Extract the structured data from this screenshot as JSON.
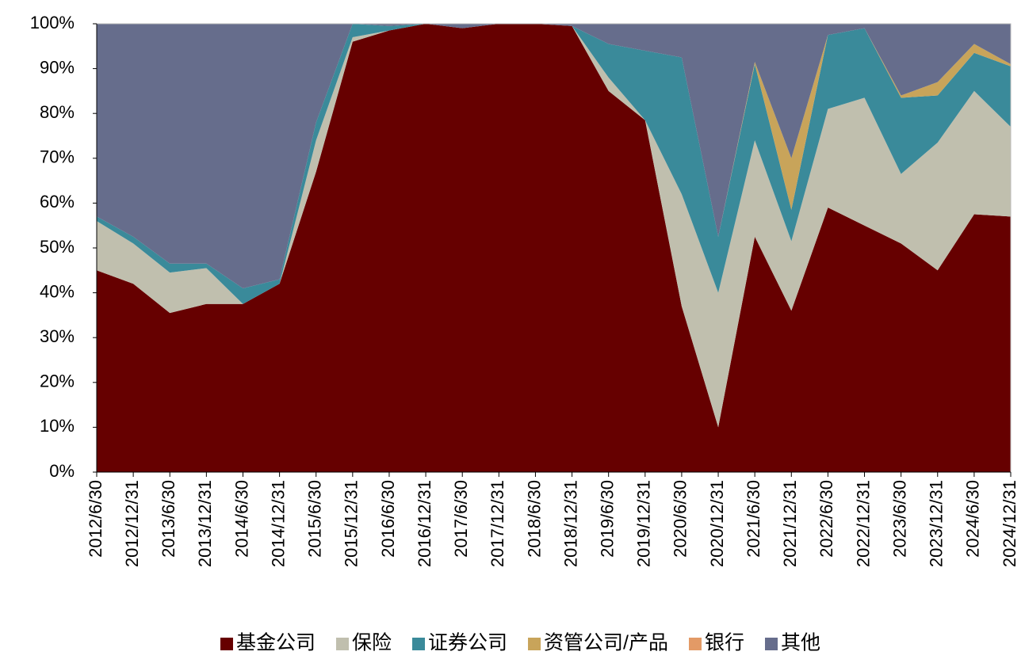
{
  "chart_data": {
    "type": "stacked_area",
    "categories": [
      "2012/6/30",
      "2012/12/31",
      "2013/6/30",
      "2013/12/31",
      "2014/6/30",
      "2014/12/31",
      "2015/6/30",
      "2015/12/31",
      "2016/6/30",
      "2016/12/31",
      "2017/6/30",
      "2017/12/31",
      "2018/6/30",
      "2018/12/31",
      "2019/6/30",
      "2019/12/31",
      "2020/6/30",
      "2020/12/31",
      "2021/6/30",
      "2021/12/31",
      "2022/6/30",
      "2022/12/31",
      "2023/6/30",
      "2023/12/31",
      "2024/6/30",
      "2024/12/31"
    ],
    "series": [
      {
        "name": "基金公司",
        "color": "#660000",
        "values": [
          45,
          42,
          35.5,
          37.5,
          37.5,
          42,
          67,
          96,
          98.5,
          100,
          99,
          100,
          100,
          99.5,
          85,
          78.5,
          37,
          10,
          52.5,
          36,
          59,
          55,
          51,
          45,
          57.5,
          57
        ]
      },
      {
        "name": "保险",
        "color": "#c0bfae",
        "values": [
          11,
          9,
          9,
          8,
          0,
          0,
          7,
          1,
          0,
          0,
          0,
          0,
          0,
          0,
          3,
          0,
          25,
          30,
          21.5,
          15.5,
          22,
          28.5,
          15.5,
          28.5,
          27.5,
          20
        ]
      },
      {
        "name": "证券公司",
        "color": "#3a8a9a",
        "values": [
          1,
          1.5,
          2,
          1,
          3.5,
          1,
          4,
          3,
          1,
          0,
          0,
          0,
          0,
          0,
          7.5,
          15.5,
          30.5,
          12.5,
          17,
          7,
          16.5,
          15.5,
          17,
          10.5,
          8.5,
          13.5
        ]
      },
      {
        "name": "资管公司/产品",
        "color": "#c8a45a",
        "values": [
          0,
          0,
          0,
          0,
          0,
          0,
          0,
          0,
          0,
          0,
          0,
          0,
          0,
          0,
          0,
          0,
          0,
          0,
          0.5,
          11.5,
          0,
          0,
          0.5,
          3,
          2,
          0.5
        ]
      },
      {
        "name": "银行",
        "color": "#e39a66",
        "values": [
          0,
          0,
          0,
          0,
          0,
          0,
          0,
          0,
          0,
          0,
          0,
          0,
          0,
          0,
          0,
          0,
          0,
          0,
          0,
          0,
          0,
          0,
          0,
          0,
          0,
          0
        ]
      },
      {
        "name": "其他",
        "color": "#666d8c",
        "values": [
          43,
          47.5,
          53.5,
          53.5,
          59,
          57,
          22,
          0,
          0.5,
          0,
          1,
          0,
          0,
          0.5,
          4.5,
          6,
          7.5,
          47.5,
          8.5,
          30,
          2.5,
          1,
          16,
          13,
          4.5,
          9
        ]
      }
    ],
    "ylim": [
      0,
      100
    ],
    "yticks": [
      {
        "value": 0,
        "label": "0%"
      },
      {
        "value": 10,
        "label": "10%"
      },
      {
        "value": 20,
        "label": "20%"
      },
      {
        "value": 30,
        "label": "30%"
      },
      {
        "value": 40,
        "label": "40%"
      },
      {
        "value": 50,
        "label": "50%"
      },
      {
        "value": 60,
        "label": "60%"
      },
      {
        "value": 70,
        "label": "70%"
      },
      {
        "value": 80,
        "label": "80%"
      },
      {
        "value": 90,
        "label": "90%"
      },
      {
        "value": 100,
        "label": "100%"
      }
    ]
  }
}
